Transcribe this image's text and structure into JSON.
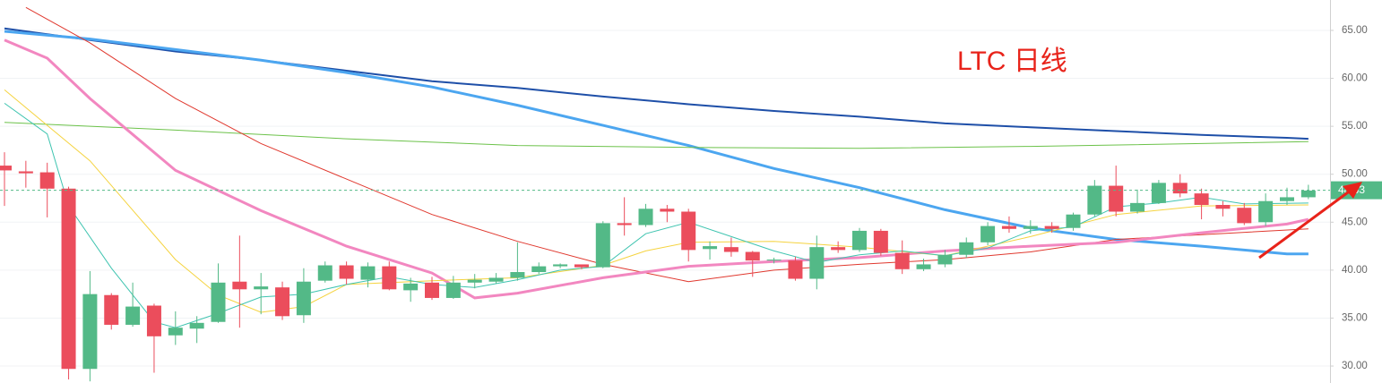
{
  "chart_data": {
    "type": "candlestick",
    "title": "LTC 日线",
    "up_color": "#53b987",
    "down_color": "#eb4d5c",
    "open": [
      50.9,
      50.3,
      50.2,
      48.5,
      29.7,
      37.4,
      34.3,
      36.3,
      33.2,
      33.9,
      34.6,
      38.8,
      38.0,
      38.2,
      35.3,
      38.9,
      40.5,
      39.0,
      40.4,
      37.9,
      38.7,
      37.1,
      38.7,
      38.8,
      39.2,
      39.8,
      40.4,
      40.6,
      40.3,
      44.9,
      44.7,
      46.4,
      46.1,
      42.2,
      42.4,
      41.9,
      41.0,
      41.0,
      39.1,
      42.4,
      42.1,
      44.1,
      41.8,
      40.1,
      40.6,
      41.6,
      42.9,
      44.6,
      44.3,
      44.6,
      44.4,
      45.8,
      48.8,
      46.1,
      47.0,
      49.1,
      48.0,
      46.8,
      46.5,
      45.0,
      47.2,
      47.6
    ],
    "high": [
      52.3,
      51.4,
      51.2,
      48.7,
      39.9,
      37.6,
      38.7,
      36.5,
      35.7,
      35.2,
      40.7,
      43.6,
      39.7,
      38.8,
      40.2,
      40.9,
      40.9,
      40.8,
      40.9,
      39.2,
      39.3,
      39.4,
      39.6,
      39.7,
      42.9,
      40.8,
      40.7,
      40.5,
      45.1,
      47.6,
      46.9,
      46.8,
      46.4,
      43.0,
      43.4,
      42.0,
      41.3,
      41.4,
      43.6,
      43.0,
      44.4,
      44.3,
      43.1,
      41.2,
      42.1,
      43.4,
      45.0,
      45.6,
      45.2,
      45.0,
      46.0,
      49.4,
      50.9,
      48.4,
      49.4,
      50.0,
      48.5,
      47.2,
      47.0,
      48.0,
      48.6,
      48.9
    ],
    "low": [
      46.7,
      48.6,
      45.5,
      28.6,
      28.4,
      33.8,
      34.1,
      29.3,
      32.2,
      32.4,
      34.5,
      34.0,
      35.4,
      34.8,
      34.5,
      38.7,
      38.5,
      38.2,
      37.9,
      36.7,
      36.9,
      37.0,
      38.1,
      38.6,
      38.9,
      39.6,
      40.2,
      40.1,
      40.2,
      43.6,
      44.5,
      45.0,
      40.9,
      41.1,
      41.4,
      39.3,
      40.7,
      38.9,
      38.0,
      41.8,
      41.9,
      41.5,
      39.6,
      39.9,
      40.3,
      41.3,
      42.6,
      43.9,
      43.8,
      43.9,
      44.1,
      45.6,
      45.6,
      45.9,
      46.9,
      47.6,
      45.3,
      45.6,
      44.7,
      44.6,
      46.8,
      47.4
    ],
    "close": [
      50.4,
      50.1,
      48.5,
      29.7,
      37.5,
      34.3,
      36.2,
      33.1,
      34.0,
      34.5,
      38.7,
      38.0,
      38.3,
      35.2,
      38.8,
      40.5,
      39.1,
      40.4,
      38.0,
      38.6,
      37.1,
      38.7,
      39.0,
      39.2,
      39.8,
      40.4,
      40.6,
      40.3,
      44.9,
      44.7,
      46.4,
      46.1,
      42.1,
      42.5,
      41.9,
      41.0,
      41.1,
      39.1,
      42.4,
      42.1,
      44.1,
      41.8,
      40.1,
      40.6,
      41.6,
      42.9,
      44.6,
      44.3,
      44.6,
      44.3,
      45.8,
      48.8,
      46.1,
      47.0,
      49.1,
      48.0,
      46.8,
      46.4,
      44.9,
      47.2,
      47.6,
      48.3
    ],
    "lines": [
      {
        "color": "#1e4fa8",
        "x": [
          0,
          4,
          8,
          12,
          16,
          20,
          24,
          28,
          32,
          36,
          40,
          44,
          48,
          52,
          56,
          60,
          61
        ],
        "values": [
          65.2,
          64.0,
          62.8,
          61.9,
          60.8,
          59.7,
          59.0,
          58.1,
          57.3,
          56.6,
          56.0,
          55.3,
          54.9,
          54.5,
          54.1,
          53.8,
          53.7
        ]
      },
      {
        "color": "#4ca6f0",
        "x": [
          0,
          4,
          8,
          12,
          16,
          20,
          24,
          28,
          32,
          36,
          40,
          44,
          48,
          52,
          56,
          60,
          61
        ],
        "values": [
          64.9,
          64.1,
          63.0,
          61.9,
          60.6,
          59.1,
          57.2,
          55.1,
          53.0,
          50.6,
          48.6,
          46.3,
          44.4,
          43.2,
          42.5,
          41.7,
          41.7
        ]
      },
      {
        "color": "#6cc24a",
        "x": [
          0,
          8,
          16,
          24,
          32,
          40,
          48,
          56,
          61
        ],
        "values": [
          55.4,
          54.6,
          53.7,
          53.0,
          52.8,
          52.7,
          52.9,
          53.2,
          53.4
        ]
      },
      {
        "color": "#e0382e",
        "x": [
          1,
          4,
          8,
          12,
          16,
          20,
          24,
          28,
          32,
          36,
          40,
          44,
          48,
          52,
          56,
          61
        ],
        "values": [
          67.4,
          63.7,
          57.9,
          53.2,
          49.5,
          45.8,
          43.0,
          40.6,
          38.8,
          40.0,
          40.6,
          41.1,
          41.9,
          43.2,
          43.7,
          44.3
        ]
      },
      {
        "color": "#f287c0",
        "x": [
          0,
          2,
          4,
          8,
          12,
          16,
          20,
          22,
          24,
          28,
          32,
          36,
          40,
          44,
          48,
          52,
          56,
          60,
          61
        ],
        "values": [
          64.0,
          62.1,
          57.9,
          50.4,
          46.2,
          42.5,
          39.7,
          37.1,
          37.6,
          39.2,
          40.4,
          40.9,
          41.3,
          42.0,
          42.5,
          42.9,
          43.9,
          44.8,
          45.3
        ]
      },
      {
        "color": "#f5d33f",
        "x": [
          0,
          2,
          4,
          8,
          10,
          12,
          14,
          16,
          20,
          24,
          28,
          30,
          32,
          36,
          40,
          44,
          48,
          52,
          56,
          61
        ],
        "values": [
          58.8,
          55.1,
          51.4,
          41.1,
          37.4,
          35.6,
          36.2,
          38.5,
          38.9,
          39.2,
          40.5,
          42.0,
          42.9,
          43.0,
          42.4,
          41.5,
          43.5,
          45.8,
          46.7,
          46.8
        ]
      },
      {
        "color": "#3fc4b0",
        "x": [
          0,
          2,
          3,
          5,
          7,
          8,
          10,
          12,
          14,
          16,
          18,
          20,
          22,
          24,
          26,
          28,
          30,
          32,
          34,
          36,
          38,
          40,
          42,
          44,
          46,
          48,
          50,
          52,
          54,
          56,
          58,
          61
        ],
        "values": [
          57.4,
          54.2,
          46.7,
          40.2,
          34.6,
          34.0,
          35.5,
          37.2,
          37.5,
          38.5,
          39.3,
          38.5,
          38.2,
          39.0,
          40.0,
          40.4,
          43.8,
          45.0,
          43.5,
          42.0,
          40.8,
          41.6,
          42.0,
          41.5,
          42.3,
          44.1,
          44.5,
          46.6,
          47.0,
          47.6,
          46.9,
          47.0
        ]
      }
    ],
    "last_price": 48.33,
    "last_price_color": "#53b987",
    "ylim": [
      28.23,
      68.17
    ],
    "yticks": [
      {
        "value": 30,
        "label": "30.00"
      },
      {
        "value": 35,
        "label": "35.00"
      },
      {
        "value": 40,
        "label": "40.00"
      },
      {
        "value": 45,
        "label": "45.00"
      },
      {
        "value": 50,
        "label": "50.00"
      },
      {
        "value": 55,
        "label": "55.00"
      },
      {
        "value": 60,
        "label": "60.00"
      },
      {
        "value": 65,
        "label": "65.00"
      }
    ],
    "grid": true
  }
}
